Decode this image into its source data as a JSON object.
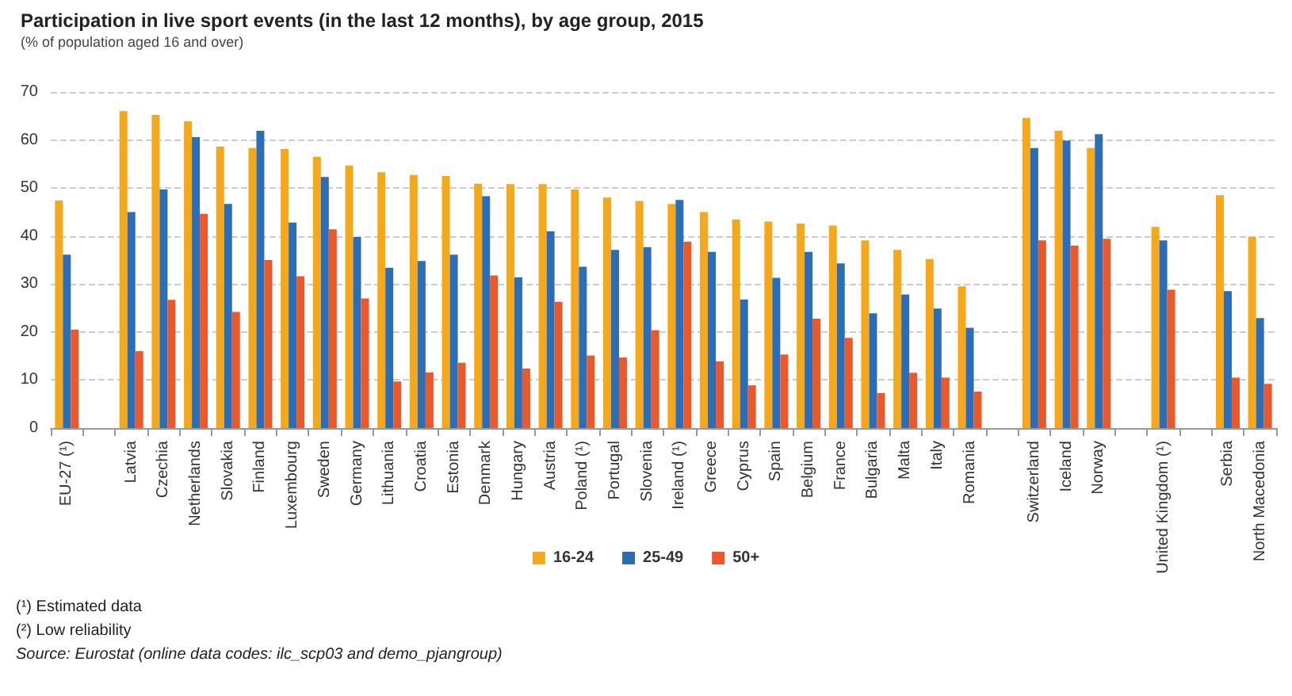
{
  "chart_data": {
    "type": "bar",
    "title": "Participation in live sport events (in the last 12 months), by age group, 2015",
    "subtitle": "(% of population aged 16 and over)",
    "categories": [
      "EU-27 (¹)",
      null,
      "Latvia",
      "Czechia",
      "Netherlands",
      "Slovakia",
      "Finland",
      "Luxembourg",
      "Sweden",
      "Germany",
      "Lithuania",
      "Croatia",
      "Estonia",
      "Denmark",
      "Hungary",
      "Austria",
      "Poland (¹)",
      "Portugal",
      "Slovenia",
      "Ireland (¹)",
      "Greece",
      "Cyprus",
      "Spain",
      "Belgium",
      "France",
      "Bulgaria",
      "Malta",
      "Italy",
      "Romania",
      null,
      "Switzerland",
      "Iceland",
      "Norway",
      null,
      "United Kingdom (¹)",
      null,
      "Serbia",
      "North Macedonia"
    ],
    "series": [
      {
        "name": "16-24",
        "color": "#f5a81c",
        "values": [
          47.4,
          null,
          66,
          65.2,
          63.9,
          58.6,
          58.3,
          58.1,
          56.5,
          54.7,
          53.3,
          52.7,
          52.5,
          50.9,
          50.8,
          50.8,
          49.7,
          48,
          47.3,
          46.7,
          45,
          43.4,
          43,
          42.6,
          42.2,
          39.1,
          37.1,
          35.2,
          29.5,
          null,
          64.6,
          61.9,
          58.3,
          null,
          41.9,
          null,
          48.5,
          39.8
        ]
      },
      {
        "name": "25-49",
        "color": "#2c6db5",
        "values": [
          36.1,
          null,
          45,
          49.7,
          60.6,
          46.7,
          61.9,
          42.8,
          52.3,
          39.8,
          33.4,
          34.8,
          36.1,
          48.3,
          31.4,
          41,
          33.6,
          37.1,
          37.7,
          47.5,
          36.7,
          26.8,
          31.3,
          36.7,
          34.3,
          23.9,
          27.8,
          24.9,
          20.9,
          null,
          58.3,
          59.9,
          61.2,
          null,
          39.1,
          null,
          28.5,
          22.9
        ]
      },
      {
        "name": "50+",
        "color": "#e9592b",
        "values": [
          20.5,
          null,
          16,
          26.7,
          44.6,
          24.2,
          35,
          31.6,
          41.4,
          27,
          9.7,
          11.6,
          13.6,
          31.8,
          12.4,
          26.3,
          15.1,
          14.7,
          20.4,
          38.8,
          13.9,
          8.9,
          15.3,
          22.8,
          18.8,
          7.3,
          11.5,
          10.5,
          7.6,
          null,
          39.1,
          38,
          39.4,
          null,
          28.8,
          null,
          10.5,
          9.2
        ]
      }
    ],
    "ylim": [
      0,
      70
    ],
    "yticks": [
      0,
      10,
      20,
      30,
      40,
      50,
      60,
      70
    ],
    "grid": "y",
    "legend": "bottom",
    "annotations": [
      "(¹) Estimated data",
      "(²) Low reliability",
      "Source: Eurostat (online data codes: ilc_scp03 and demo_pjangroup)"
    ]
  }
}
